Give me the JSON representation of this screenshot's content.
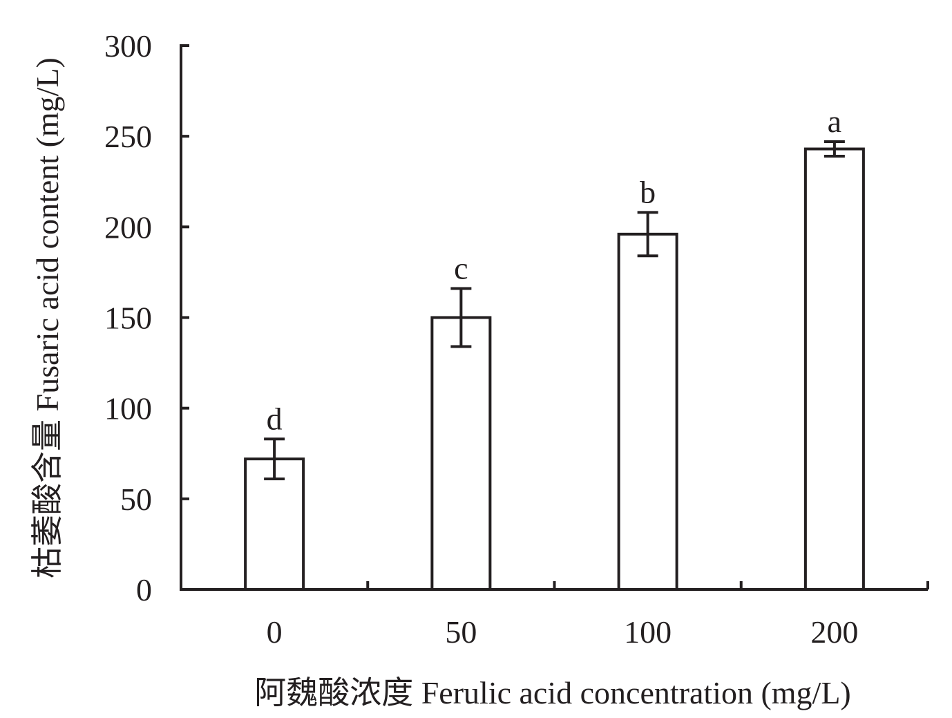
{
  "chart_data": {
    "type": "bar",
    "categories": [
      "0",
      "50",
      "100",
      "200"
    ],
    "values": [
      72,
      150,
      196,
      243
    ],
    "errors": [
      11,
      16,
      12,
      4
    ],
    "significance_labels": [
      "d",
      "c",
      "b",
      "a"
    ],
    "xlabel": "阿魏酸浓度 Ferulic acid concentration (mg/L)",
    "ylabel": "枯萎酸含量 Fusaric acid content (mg/L)",
    "ylim": [
      0,
      300
    ],
    "yticks": [
      0,
      50,
      100,
      150,
      200,
      250,
      300
    ],
    "grid": false,
    "colors": {
      "bar_fill": "#ffffff",
      "stroke": "#231f20"
    }
  }
}
